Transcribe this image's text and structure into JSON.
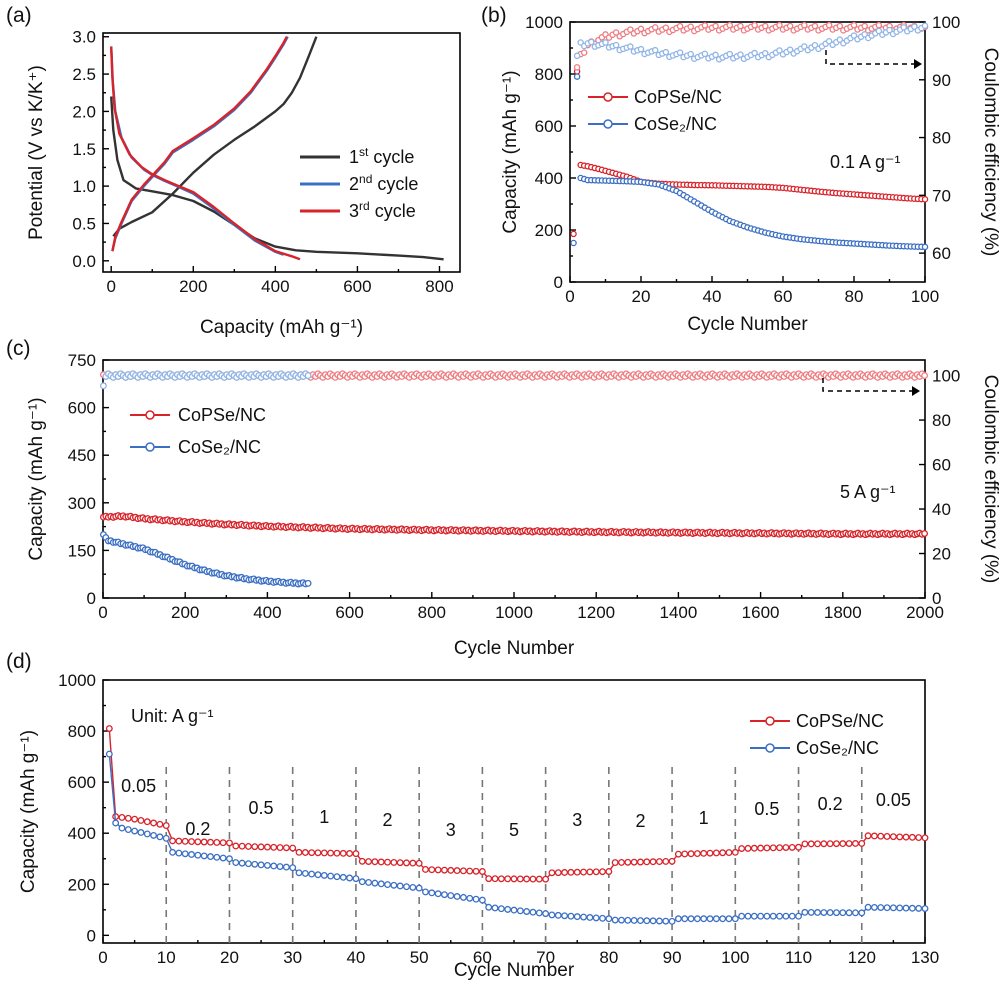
{
  "figure": {
    "width": 1000,
    "height": 984
  },
  "colors": {
    "red": "#d8232a",
    "red_light": "#ee7b80",
    "blue": "#3b6fc4",
    "blue_light": "#8fb4e6",
    "black": "#333333"
  },
  "chart_data": [
    {
      "panel": "(a)",
      "type": "line",
      "xlabel": "Capacity (mAh g⁻¹)",
      "ylabel": "Potential (V vs K/K⁺)",
      "xlim": [
        -20,
        850
      ],
      "ylim": [
        -0.15,
        3.05
      ],
      "xticks": [
        0,
        200,
        400,
        600,
        800
      ],
      "xticklabels": [
        "0",
        "200",
        "400",
        "600",
        "800"
      ],
      "yticks": [
        0.0,
        0.5,
        1.0,
        1.5,
        2.0,
        2.5,
        3.0
      ],
      "yticklabels": [
        "0.0",
        "0.5",
        "1.0",
        "1.5",
        "2.0",
        "2.5",
        "3.0"
      ],
      "legend": [
        {
          "base": "1",
          "sup": "st",
          "suffix": " cycle",
          "color": "#333333"
        },
        {
          "base": "2",
          "sup": "nd",
          "suffix": " cycle",
          "color": "#3b6fc4"
        },
        {
          "base": "3",
          "sup": "rd",
          "suffix": "  cycle",
          "color": "#d8232a"
        }
      ],
      "series": [
        {
          "name": "1st cycle discharge",
          "color": "#333333",
          "x": [
            0,
            5,
            15,
            30,
            60,
            100,
            150,
            200,
            250,
            300,
            350,
            400,
            450,
            500,
            600,
            700,
            760,
            810
          ],
          "y": [
            2.2,
            1.75,
            1.35,
            1.08,
            0.97,
            0.93,
            0.88,
            0.8,
            0.66,
            0.48,
            0.3,
            0.19,
            0.14,
            0.12,
            0.1,
            0.07,
            0.05,
            0.02
          ]
        },
        {
          "name": "1st cycle charge",
          "color": "#333333",
          "x": [
            5,
            20,
            50,
            100,
            150,
            200,
            250,
            300,
            350,
            400,
            420,
            440,
            460,
            480,
            500
          ],
          "y": [
            0.33,
            0.43,
            0.52,
            0.65,
            0.9,
            1.18,
            1.42,
            1.62,
            1.8,
            2.0,
            2.1,
            2.25,
            2.45,
            2.72,
            3.0
          ]
        },
        {
          "name": "2nd cycle discharge",
          "color": "#3b6fc4",
          "x": [
            0,
            4,
            10,
            25,
            50,
            80,
            100,
            130,
            160,
            200,
            250,
            300,
            350,
            400,
            420
          ],
          "y": [
            2.87,
            2.4,
            2.0,
            1.65,
            1.38,
            1.22,
            1.15,
            1.07,
            1.0,
            0.9,
            0.7,
            0.48,
            0.27,
            0.12,
            0.08
          ]
        },
        {
          "name": "2nd cycle charge",
          "color": "#3b6fc4",
          "x": [
            3,
            10,
            25,
            50,
            80,
            100,
            130,
            150,
            200,
            250,
            300,
            340,
            380,
            400,
            420,
            430
          ],
          "y": [
            0.13,
            0.3,
            0.5,
            0.8,
            1.0,
            1.12,
            1.3,
            1.45,
            1.62,
            1.8,
            2.02,
            2.25,
            2.55,
            2.72,
            2.9,
            3.0
          ]
        },
        {
          "name": "3rd cycle discharge",
          "color": "#d8232a",
          "x": [
            0,
            3,
            8,
            20,
            45,
            75,
            100,
            130,
            160,
            200,
            250,
            300,
            350,
            400,
            440,
            460
          ],
          "y": [
            2.87,
            2.45,
            2.05,
            1.7,
            1.42,
            1.25,
            1.16,
            1.08,
            1.01,
            0.92,
            0.72,
            0.5,
            0.29,
            0.13,
            0.06,
            0.02
          ]
        },
        {
          "name": "3rd cycle charge",
          "color": "#d8232a",
          "x": [
            3,
            10,
            25,
            50,
            80,
            100,
            130,
            150,
            200,
            250,
            300,
            340,
            380,
            400,
            420,
            428
          ],
          "y": [
            0.13,
            0.32,
            0.52,
            0.82,
            1.02,
            1.14,
            1.32,
            1.47,
            1.64,
            1.82,
            2.04,
            2.27,
            2.57,
            2.74,
            2.92,
            3.0
          ]
        }
      ]
    },
    {
      "panel": "(b)",
      "type": "scatter",
      "xlabel": "Cycle Number",
      "ylabel": "Capacity (mAh g⁻¹)",
      "ylabel2": "Coulombic efficiency (%)",
      "xlim": [
        0,
        100
      ],
      "ylim": [
        0,
        1000
      ],
      "ylim2": [
        55,
        100
      ],
      "xticks": [
        0,
        20,
        40,
        60,
        80,
        100
      ],
      "yticks": [
        0,
        200,
        400,
        600,
        800,
        1000
      ],
      "yticks2": [
        60,
        70,
        80,
        90,
        100
      ],
      "annotation": "0.1 A g⁻¹",
      "legend": [
        "CoPSe/NC",
        "CoSe₂/NC"
      ],
      "series": [
        {
          "name": "CoPSe/NC",
          "color": "#d8232a",
          "x": [
            1,
            2,
            3,
            5,
            8,
            12,
            16,
            20,
            25,
            30,
            35,
            40,
            45,
            50,
            55,
            60,
            65,
            70,
            75,
            80,
            85,
            90,
            95,
            100
          ],
          "y": [
            185,
            810,
            450,
            445,
            435,
            420,
            405,
            385,
            378,
            375,
            373,
            372,
            370,
            368,
            366,
            362,
            355,
            348,
            342,
            337,
            332,
            327,
            322,
            318
          ]
        },
        {
          "name": "CoSe₂/NC",
          "color": "#3b6fc4",
          "x": [
            1,
            2,
            3,
            5,
            10,
            15,
            20,
            25,
            30,
            35,
            40,
            45,
            50,
            55,
            60,
            65,
            70,
            75,
            80,
            85,
            90,
            95,
            100
          ],
          "y": [
            150,
            790,
            400,
            392,
            390,
            388,
            385,
            375,
            350,
            310,
            270,
            235,
            210,
            190,
            175,
            165,
            158,
            152,
            148,
            144,
            140,
            137,
            135
          ]
        },
        {
          "name": "CoPSe/NC CE",
          "color": "#ee7b80",
          "axis": "right",
          "x": [
            2,
            3,
            5,
            8,
            12,
            20,
            30,
            40,
            50,
            60,
            70,
            80,
            90,
            100
          ],
          "y": [
            92,
            94,
            96,
            97,
            97.8,
            98.5,
            98.8,
            99,
            99,
            99,
            99,
            99,
            99,
            99
          ]
        },
        {
          "name": "CoSe₂/NC CE",
          "color": "#8fb4e6",
          "axis": "right",
          "x": [
            2,
            3,
            5,
            10,
            15,
            20,
            25,
            30,
            35,
            40,
            45,
            50,
            55,
            60,
            65,
            70,
            75,
            80,
            85,
            90,
            95,
            100
          ],
          "y": [
            94,
            96,
            96.3,
            96,
            95.5,
            95,
            94.6,
            94.3,
            94.1,
            94,
            94,
            94.1,
            94.3,
            94.7,
            95.2,
            95.8,
            96.5,
            97.2,
            97.8,
            98.3,
            98.7,
            99.2
          ]
        }
      ]
    },
    {
      "panel": "(c)",
      "type": "scatter",
      "xlabel": "Cycle Number",
      "ylabel": "Capacity (mAh g⁻¹)",
      "ylabel2": "Coulombic efficiency (%)",
      "xlim": [
        0,
        2000
      ],
      "ylim": [
        0,
        750
      ],
      "ylim2": [
        0,
        107
      ],
      "xticks": [
        0,
        200,
        400,
        600,
        800,
        1000,
        1200,
        1400,
        1600,
        1800,
        2000
      ],
      "yticks": [
        0,
        150,
        300,
        450,
        600,
        750
      ],
      "yticks2": [
        0,
        20,
        40,
        60,
        80,
        100
      ],
      "annotation": "5 A g⁻¹",
      "legend": [
        "CoPSe/NC",
        "CoSe₂/NC"
      ],
      "series": [
        {
          "name": "CoPSe/NC",
          "color": "#d8232a",
          "x": [
            1,
            50,
            100,
            200,
            300,
            400,
            500,
            600,
            800,
            1000,
            1200,
            1400,
            1600,
            1800,
            2000
          ],
          "y": [
            255,
            258,
            250,
            240,
            232,
            226,
            222,
            218,
            214,
            211,
            208,
            206,
            204,
            202,
            202
          ]
        },
        {
          "name": "CoSe₂/NC",
          "color": "#3b6fc4",
          "x": [
            1,
            10,
            50,
            100,
            150,
            200,
            250,
            300,
            350,
            400,
            450,
            500
          ],
          "y": [
            200,
            182,
            170,
            155,
            130,
            105,
            85,
            70,
            60,
            53,
            48,
            45
          ]
        },
        {
          "name": "CoPSe/NC CE",
          "color": "#ee7b80",
          "axis": "right",
          "x": [
            1,
            2000
          ],
          "y": [
            100,
            100
          ]
        },
        {
          "name": "CoSe₂/NC CE",
          "color": "#8fb4e6",
          "axis": "right",
          "x": [
            1,
            5,
            500
          ],
          "y": [
            95,
            100,
            100
          ]
        }
      ]
    },
    {
      "panel": "(d)",
      "type": "scatter",
      "xlabel": "Cycle Number",
      "ylabel": "Capacity (mAh g⁻¹)",
      "xlim": [
        0,
        130
      ],
      "ylim": [
        -30,
        1000
      ],
      "xticks": [
        0,
        10,
        20,
        30,
        40,
        50,
        60,
        70,
        80,
        90,
        100,
        110,
        120,
        130
      ],
      "yticks": [
        0,
        200,
        400,
        600,
        800,
        1000
      ],
      "annotation": "Unit: A g⁻¹",
      "legend": [
        "CoPSe/NC",
        "CoSe₂/NC"
      ],
      "rates": [
        "0.05",
        "0.2",
        "0.5",
        "1",
        "2",
        "3",
        "5",
        "3",
        "2",
        "1",
        "0.5",
        "0.2",
        "0.05"
      ],
      "separators": [
        10,
        20,
        30,
        40,
        50,
        60,
        70,
        80,
        90,
        100,
        110,
        120
      ],
      "series": [
        {
          "name": "CoPSe/NC",
          "color": "#d8232a",
          "x": [
            1,
            2,
            5,
            10,
            11,
            20,
            21,
            30,
            31,
            40,
            41,
            50,
            51,
            60,
            61,
            70,
            71,
            80,
            81,
            90,
            91,
            100,
            101,
            110,
            111,
            120,
            121,
            130
          ],
          "y": [
            810,
            465,
            455,
            430,
            370,
            362,
            350,
            342,
            325,
            320,
            290,
            282,
            258,
            250,
            222,
            220,
            245,
            250,
            285,
            290,
            318,
            325,
            340,
            345,
            358,
            360,
            390,
            382
          ]
        },
        {
          "name": "CoSe₂/NC",
          "color": "#3b6fc4",
          "x": [
            1,
            2,
            3,
            10,
            11,
            20,
            21,
            30,
            31,
            40,
            41,
            50,
            51,
            60,
            61,
            70,
            71,
            80,
            81,
            90,
            91,
            100,
            101,
            110,
            111,
            120,
            121,
            130
          ],
          "y": [
            710,
            440,
            420,
            380,
            325,
            300,
            285,
            265,
            245,
            222,
            210,
            185,
            170,
            138,
            110,
            85,
            80,
            65,
            60,
            55,
            65,
            65,
            75,
            75,
            90,
            88,
            110,
            105
          ]
        }
      ]
    }
  ]
}
